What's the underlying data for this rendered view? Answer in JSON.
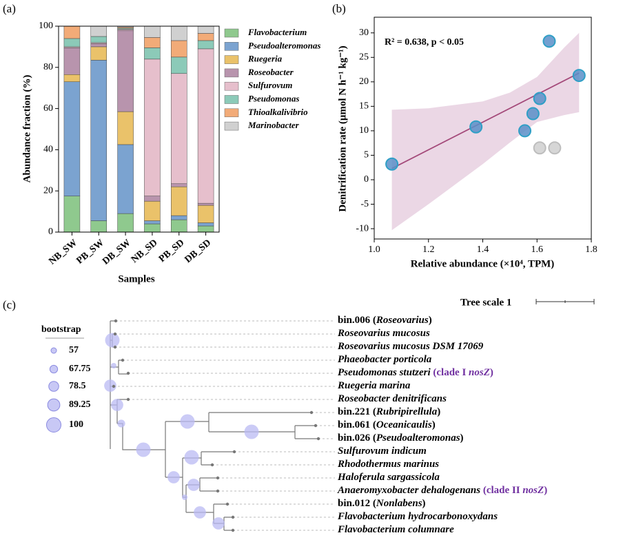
{
  "chart_data": [
    {
      "type": "stacked-bar",
      "label": "(a)",
      "y_label": "Abundance fraction (%)",
      "x_label": "Samples",
      "categories": [
        "NB_SW",
        "PB_SW",
        "DB_SW",
        "NB_SD",
        "PB_SD",
        "DB_SD"
      ],
      "ylim": [
        0,
        100
      ],
      "yticks": [
        0,
        20,
        40,
        60,
        80,
        100
      ],
      "series": [
        {
          "name": "Flavobacterium",
          "color": "#8fc98e",
          "values": [
            17.5,
            5.5,
            9,
            4,
            6,
            3
          ]
        },
        {
          "name": "Pseudoalteromonas",
          "color": "#7ba3d0",
          "values": [
            55.5,
            78,
            33.5,
            1.5,
            2,
            1.5
          ]
        },
        {
          "name": "Ruegeria",
          "color": "#eac26a",
          "values": [
            3.5,
            6.5,
            16,
            9.5,
            14,
            8.5
          ]
        },
        {
          "name": "Roseobacter",
          "color": "#b894ad",
          "values": [
            13,
            1.5,
            39.5,
            2.5,
            1.5,
            1
          ]
        },
        {
          "name": "Sulfurovum",
          "color": "#e6bfcc",
          "values": [
            0.5,
            0.5,
            0.5,
            66.5,
            53.5,
            75
          ]
        },
        {
          "name": "Pseudomonas",
          "color": "#8ccab8",
          "values": [
            4,
            3,
            0.5,
            5.5,
            8,
            4
          ]
        },
        {
          "name": "Thioalkalivibrio",
          "color": "#f2ab78",
          "values": [
            6,
            0,
            0.5,
            5,
            8,
            3.5
          ]
        },
        {
          "name": "Marinobacter",
          "color": "#d0d0d0",
          "values": [
            0,
            5,
            0.5,
            5.5,
            7,
            3.5
          ]
        }
      ]
    },
    {
      "type": "scatter",
      "label": "(b)",
      "annotation": "R² = 0.638, p < 0.05",
      "y_label": "Denitrification rate (μmol N h⁻¹ kg⁻¹)",
      "x_label": "Relative abundance (×10⁴, TPM)",
      "xlim": [
        1.0,
        1.8
      ],
      "xticks": [
        {
          "value": 1.0,
          "label": "1.0"
        },
        1.2,
        1.4,
        1.6,
        1.8
      ],
      "ylim": [
        -12.1,
        33.2
      ],
      "yticks": [
        -10,
        -5,
        0,
        5,
        10,
        15,
        20,
        25,
        30
      ],
      "series": [
        {
          "color": "#5b8fc8",
          "edge": "#2f9fc6",
          "x": [
            1.065,
            1.375,
            1.555,
            1.585,
            1.61,
            1.645,
            1.755
          ],
          "values": [
            3.2,
            10.8,
            10,
            13.5,
            16.6,
            28.3,
            21.3
          ]
        },
        {
          "color": "#cfcfcf",
          "edge": "#bdbdbd",
          "x": [
            1.61,
            1.665
          ],
          "values": [
            6.5,
            6.5
          ]
        }
      ],
      "fit": {
        "color": "#a44a7a",
        "x": [
          1.065,
          1.755
        ],
        "values": [
          2.3,
          21.8
        ]
      },
      "band": {
        "color": "#e9d3e2",
        "x": [
          1.065,
          1.2,
          1.4,
          1.5,
          1.6,
          1.7,
          1.755
        ],
        "upper": [
          14.3,
          14.6,
          16,
          17.8,
          21,
          27,
          30
        ],
        "lower": [
          -10.3,
          -5,
          3.2,
          7.6,
          11.8,
          13.2,
          13.8
        ]
      }
    }
  ],
  "tree": {
    "label": "(c)",
    "scale_label": "Tree scale 1",
    "legend_title": "bootstrap",
    "legend_values": [
      57,
      67.75,
      78.5,
      89.25,
      100
    ],
    "nodes": [
      100,
      57,
      89.25,
      89.25,
      67.75,
      100,
      100,
      100,
      100,
      89.25,
      89.25,
      57,
      89.25,
      89.25
    ],
    "leaves": [
      [
        {
          "text": "bin.006 ("
        },
        {
          "text": "Roseovarius",
          "italic": true
        },
        {
          "text": ")"
        }
      ],
      [
        {
          "text": "Roseovarius mucosus",
          "italic": true
        }
      ],
      [
        {
          "text": "Roseovarius mucosus DSM 17069",
          "italic": true
        }
      ],
      [
        {
          "text": "Phaeobacter porticola",
          "italic": true
        }
      ],
      [
        {
          "text": "Pseudomonas stutzeri",
          "italic": true
        },
        {
          "text": " (clade I ",
          "color": "#7030a0"
        },
        {
          "text": "nosZ",
          "italic": true,
          "color": "#7030a0"
        },
        {
          "text": ")",
          "color": "#7030a0"
        }
      ],
      [
        {
          "text": "Ruegeria marina",
          "italic": true
        }
      ],
      [
        {
          "text": "Roseobacter denitrificans",
          "italic": true
        }
      ],
      [
        {
          "text": "bin.221 ("
        },
        {
          "text": "Rubripirellula",
          "italic": true
        },
        {
          "text": ")"
        }
      ],
      [
        {
          "text": "bin.061 ("
        },
        {
          "text": "Oceanicaulis",
          "italic": true
        },
        {
          "text": ")"
        }
      ],
      [
        {
          "text": "bin.026 ("
        },
        {
          "text": "Pseudoalteromonas",
          "italic": true
        },
        {
          "text": ")"
        }
      ],
      [
        {
          "text": "Sulfurovum indicum",
          "italic": true
        }
      ],
      [
        {
          "text": "Rhodothermus marinus",
          "italic": true
        }
      ],
      [
        {
          "text": "Haloferula sargassicola",
          "italic": true
        }
      ],
      [
        {
          "text": "Anaeromyxobacter dehalogenans",
          "italic": true
        },
        {
          "text": " (clade II ",
          "color": "#7030a0"
        },
        {
          "text": "nosZ",
          "italic": true,
          "color": "#7030a0"
        },
        {
          "text": ")",
          "color": "#7030a0"
        }
      ],
      [
        {
          "text": "bin.012 ("
        },
        {
          "text": "Nonlabens",
          "italic": true
        },
        {
          "text": ")"
        }
      ],
      [
        {
          "text": "Flavobacterium hydrocarbonoxydans",
          "italic": true
        }
      ],
      [
        {
          "text": "Flavobacterium columnare",
          "italic": true
        }
      ]
    ]
  }
}
